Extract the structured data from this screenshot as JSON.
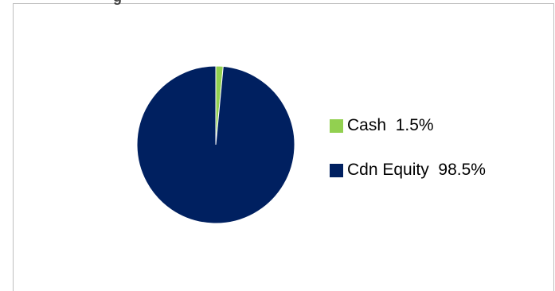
{
  "chart_data": {
    "type": "pie",
    "title": "g",
    "slices": [
      {
        "label": "Cash",
        "value": 1.5,
        "value_label": "1.5%",
        "color": "#92d050"
      },
      {
        "label": "Cdn Equity",
        "value": 98.5,
        "value_label": "98.5%",
        "color": "#002060"
      }
    ],
    "legend_position": "right"
  }
}
